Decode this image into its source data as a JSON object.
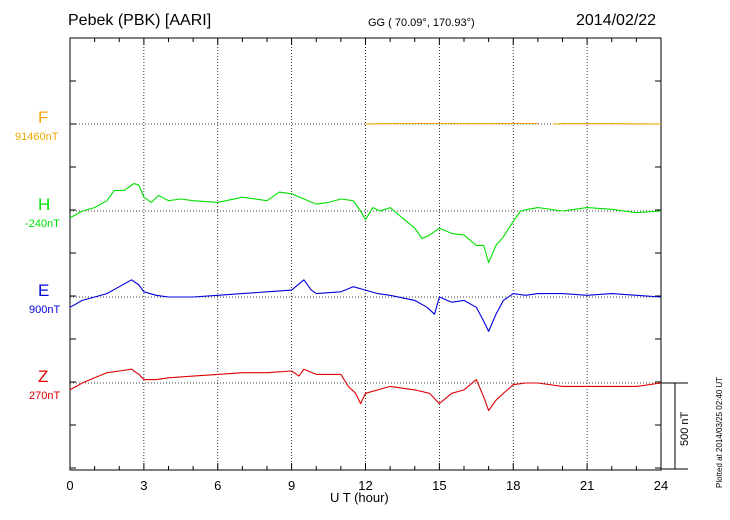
{
  "header": {
    "station": "Pebek (PBK)  [AARI]",
    "coords": "GG ( 70.09°, 170.93°)",
    "date": "2014/02/22"
  },
  "plotted_note": "Plotted at 2014/03/25 02:40 UT",
  "scale_label": "500 nT",
  "colors": {
    "F": "#f0a800",
    "H": "#00e000",
    "E": "#0000dd",
    "Z": "#e00000"
  },
  "chart_data": {
    "type": "line",
    "xlabel": "U T (hour)",
    "xlim": [
      0,
      24
    ],
    "xticks": [
      "0",
      "3",
      "6",
      "9",
      "12",
      "15",
      "18",
      "21",
      "24"
    ],
    "scale_bar_nT": 500,
    "series": [
      {
        "name": "F",
        "baseline": "91460nT",
        "x": [
          12,
          12.5,
          13,
          14,
          15,
          16,
          17,
          18,
          19,
          19.3,
          19.6,
          20,
          21,
          22,
          23,
          24
        ],
        "values": [
          0,
          2,
          2,
          3,
          3,
          2,
          2,
          3,
          3,
          null,
          0,
          2,
          2,
          2,
          1,
          0
        ]
      },
      {
        "name": "H",
        "baseline": "-240nT",
        "x": [
          0,
          0.5,
          1,
          1.5,
          1.8,
          2.2,
          2.6,
          2.8,
          3,
          3.3,
          3.6,
          4,
          4.5,
          5,
          6,
          7,
          8,
          8.5,
          9,
          9.5,
          10,
          10.5,
          11,
          11.5,
          11.8,
          12,
          12.3,
          12.6,
          13,
          13.5,
          14,
          14.3,
          14.6,
          15,
          15.5,
          16,
          16.5,
          16.8,
          17,
          17.3,
          17.6,
          18,
          18.3,
          18.6,
          19,
          20,
          21,
          22,
          23,
          24
        ],
        "values": [
          -40,
          0,
          20,
          60,
          120,
          120,
          160,
          150,
          80,
          50,
          90,
          60,
          70,
          60,
          50,
          80,
          60,
          110,
          100,
          70,
          40,
          50,
          70,
          60,
          0,
          -50,
          20,
          0,
          20,
          -40,
          -100,
          -160,
          -140,
          -100,
          -130,
          -140,
          -200,
          -200,
          -300,
          -200,
          -150,
          -60,
          0,
          10,
          20,
          0,
          20,
          10,
          -10,
          0
        ]
      },
      {
        "name": "E",
        "baseline": "900nT",
        "x": [
          0,
          0.5,
          1,
          1.5,
          2,
          2.5,
          2.8,
          3,
          3.5,
          4,
          5,
          6,
          7,
          8,
          9,
          9.5,
          9.8,
          10,
          11,
          11.5,
          12,
          12.5,
          13,
          14,
          14.5,
          14.8,
          15,
          15.5,
          16,
          16.5,
          16.8,
          17,
          17.3,
          17.6,
          18,
          18.5,
          19,
          20,
          21,
          22,
          23,
          24
        ],
        "values": [
          -60,
          -20,
          0,
          20,
          60,
          100,
          70,
          30,
          10,
          0,
          0,
          10,
          20,
          30,
          40,
          100,
          40,
          20,
          30,
          60,
          40,
          20,
          10,
          -20,
          -60,
          -100,
          0,
          -30,
          -20,
          -60,
          -140,
          -200,
          -100,
          -20,
          20,
          10,
          20,
          20,
          10,
          20,
          10,
          0
        ]
      },
      {
        "name": "Z",
        "baseline": "270nT",
        "x": [
          0,
          0.5,
          1,
          1.5,
          2,
          2.5,
          2.8,
          3,
          3.5,
          4,
          5,
          6,
          7,
          8,
          9,
          9.3,
          9.5,
          10,
          11,
          11.3,
          11.6,
          11.8,
          12,
          12.5,
          13,
          14,
          14.6,
          15,
          15.5,
          16,
          16.5,
          16.8,
          17,
          17.3,
          17.6,
          18,
          18.5,
          19,
          20,
          21,
          22,
          23,
          24
        ],
        "values": [
          -40,
          0,
          30,
          60,
          70,
          80,
          50,
          20,
          20,
          30,
          40,
          50,
          60,
          60,
          70,
          40,
          80,
          50,
          50,
          -20,
          -60,
          -120,
          -60,
          -40,
          -20,
          -40,
          -60,
          -120,
          -60,
          -40,
          20,
          -80,
          -160,
          -100,
          -60,
          -10,
          0,
          0,
          -20,
          -20,
          -20,
          -20,
          0
        ]
      }
    ]
  }
}
